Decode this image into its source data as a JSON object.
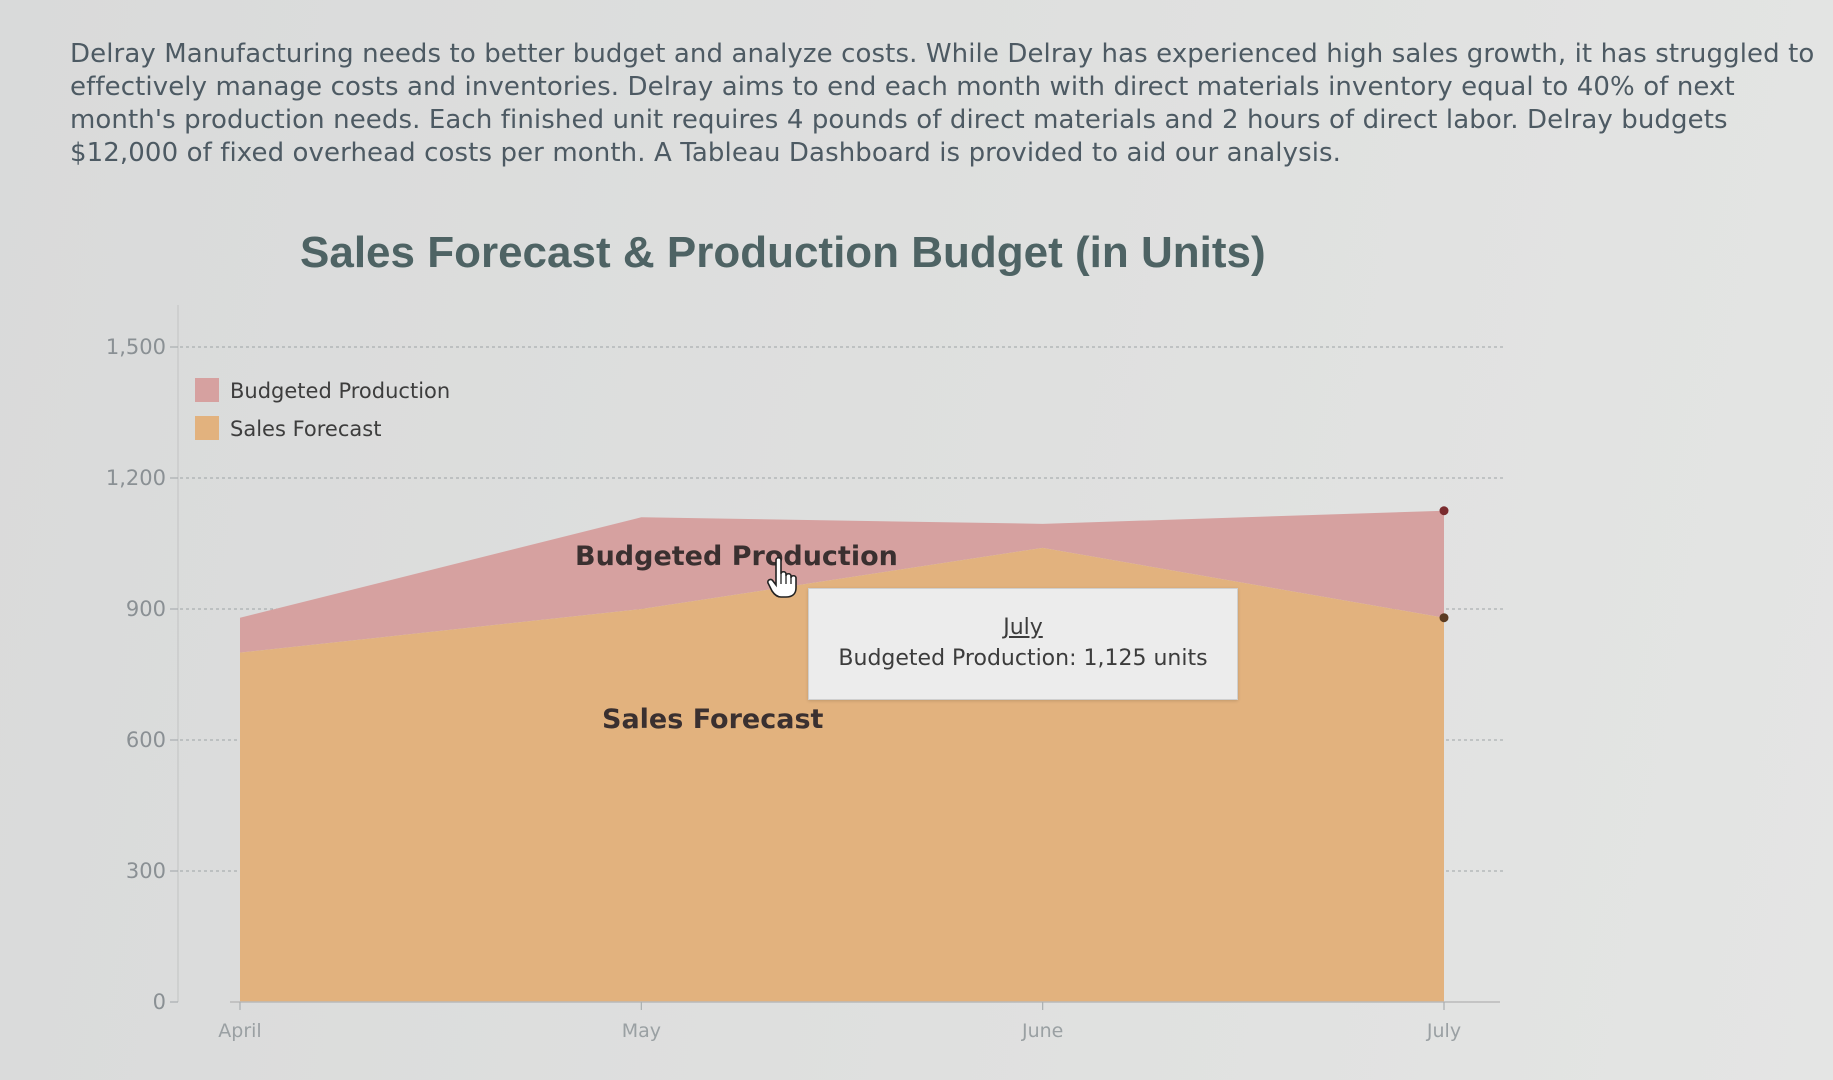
{
  "intro_text": "Delray Manufacturing needs to better budget and analyze costs. While Delray has experienced high sales growth, it has struggled to effectively manage costs and inventories. Delray aims to end each month with direct materials inventory equal to 40% of next month's production needs. Each finished unit requires 4 pounds of direct materials and 2 hours of direct labor. Delray budgets $12,000 of fixed overhead costs per month. A Tableau Dashboard is provided to aid our analysis.",
  "chart_data": {
    "type": "area",
    "title": "Sales Forecast & Production Budget (in Units)",
    "categories": [
      "April",
      "May",
      "June",
      "July"
    ],
    "y_ticks": [
      "0",
      "300",
      "600",
      "900",
      "1,200",
      "1,500"
    ],
    "ylim": [
      0,
      1500
    ],
    "grid": true,
    "legend_position": "top-left",
    "series": [
      {
        "name": "Budgeted Production",
        "values": [
          880,
          1110,
          1095,
          1125
        ],
        "color": "#d6a1a0"
      },
      {
        "name": "Sales Forecast",
        "values": [
          800,
          900,
          1040,
          880
        ],
        "color": "#e2b27e"
      }
    ],
    "area_labels": {
      "production": "Budgeted Production",
      "sales": "Sales Forecast"
    },
    "tooltip": {
      "month": "July",
      "text": "Budgeted Production: 1,125 units"
    }
  }
}
